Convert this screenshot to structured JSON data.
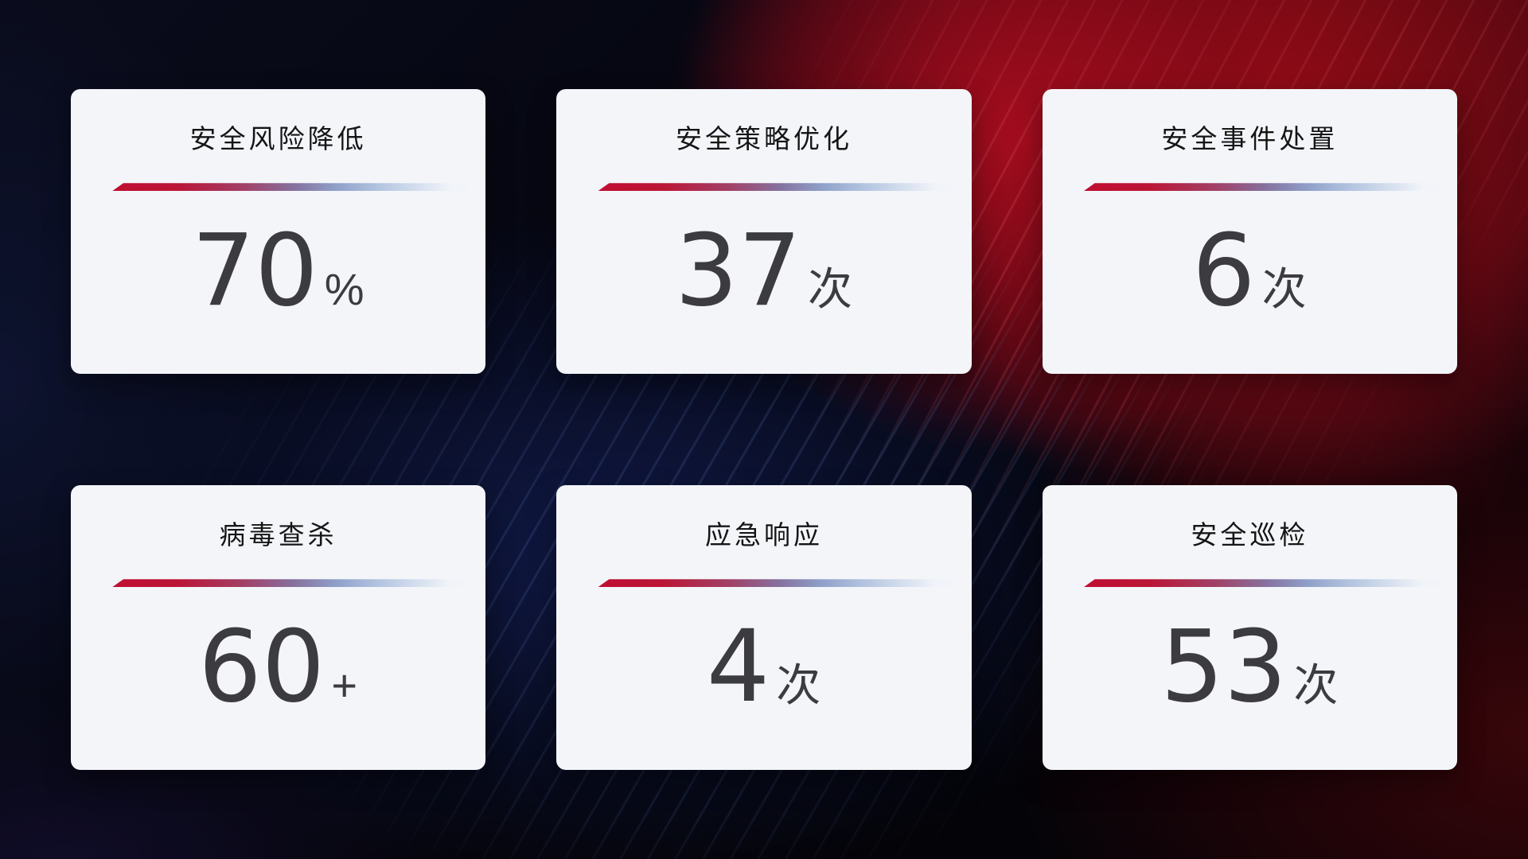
{
  "background": {
    "base_dark": "#05060d",
    "navy_glow": "#17256a",
    "red_glow": "#9b0c16",
    "maroon_corner": "#3a0508"
  },
  "card_style": {
    "background": "#f3f5f9",
    "title_color": "#151515",
    "value_color": "#3c3c40",
    "divider_gradient_start": "#c00e31",
    "divider_gradient_mid": "#85719e",
    "divider_gradient_end": "#d4deee"
  },
  "cards": [
    {
      "title": "安全风险降低",
      "value": "70",
      "unit": "%"
    },
    {
      "title": "安全策略优化",
      "value": "37",
      "unit": "次"
    },
    {
      "title": "安全事件处置",
      "value": "6",
      "unit": "次"
    },
    {
      "title": "病毒查杀",
      "value": "60",
      "unit": "+"
    },
    {
      "title": "应急响应",
      "value": "4",
      "unit": "次"
    },
    {
      "title": "安全巡检",
      "value": "53",
      "unit": "次"
    }
  ]
}
